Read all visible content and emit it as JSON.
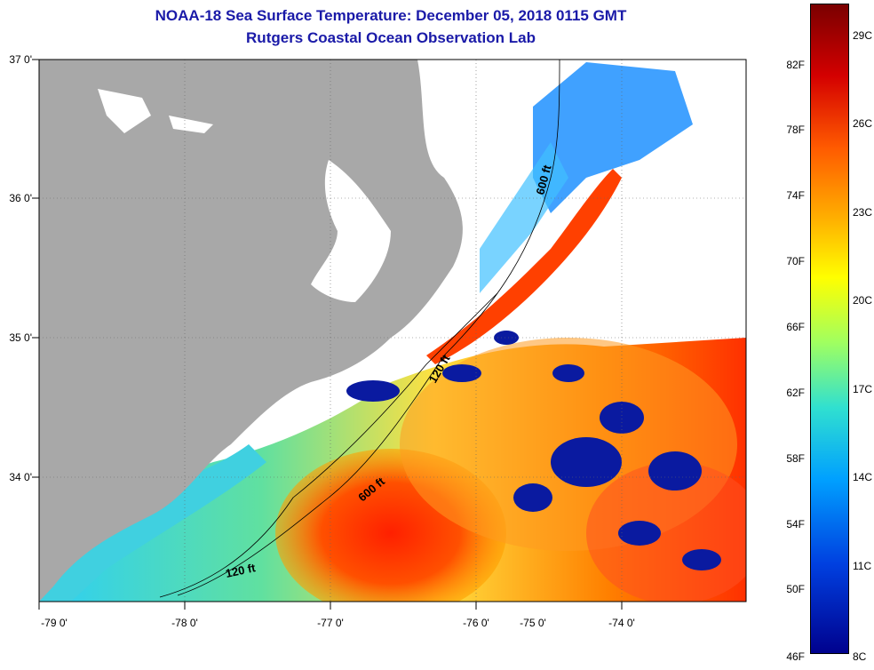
{
  "title": "NOAA-18 Sea Surface Temperature:  December 05, 2018 0115 GMT",
  "subtitle": "Rutgers Coastal Ocean Observation Lab",
  "lat_labels": [
    {
      "label": "37 0'",
      "value": 37.0
    },
    {
      "label": "36 0'",
      "value": 36.0
    },
    {
      "label": "35 0'",
      "value": 35.0
    },
    {
      "label": "34 0'",
      "value": 34.0
    }
  ],
  "lon_labels": [
    {
      "label": "-79 0'",
      "value": -79.0
    },
    {
      "label": "-78 0'",
      "value": -78.0
    },
    {
      "label": "-77 0'",
      "value": -77.0
    },
    {
      "label": "-76 0'",
      "value": -76.0
    },
    {
      "label": "-75 0'",
      "value": -75.0
    },
    {
      "label": "-74 0'",
      "value": -74.0
    }
  ],
  "isobath_labels": [
    "600 ft",
    "120 ft",
    "600 ft",
    "120 ft"
  ],
  "colorbar": {
    "fahrenheit": [
      "82F",
      "78F",
      "74F",
      "70F",
      "66F",
      "62F",
      "58F",
      "54F",
      "50F",
      "46F"
    ],
    "celsius": [
      "29C",
      "26C",
      "23C",
      "20C",
      "17C",
      "14C",
      "11C",
      "8C"
    ],
    "colors": [
      "#7a0000",
      "#d40000",
      "#ff5a00",
      "#ffb000",
      "#ffff00",
      "#a0ff60",
      "#30e0d0",
      "#00a0ff",
      "#0040e0",
      "#00008c"
    ]
  },
  "colors": {
    "land": "#a8a8a8",
    "cloud": "#ffffff",
    "title": "#1a1aa8"
  }
}
